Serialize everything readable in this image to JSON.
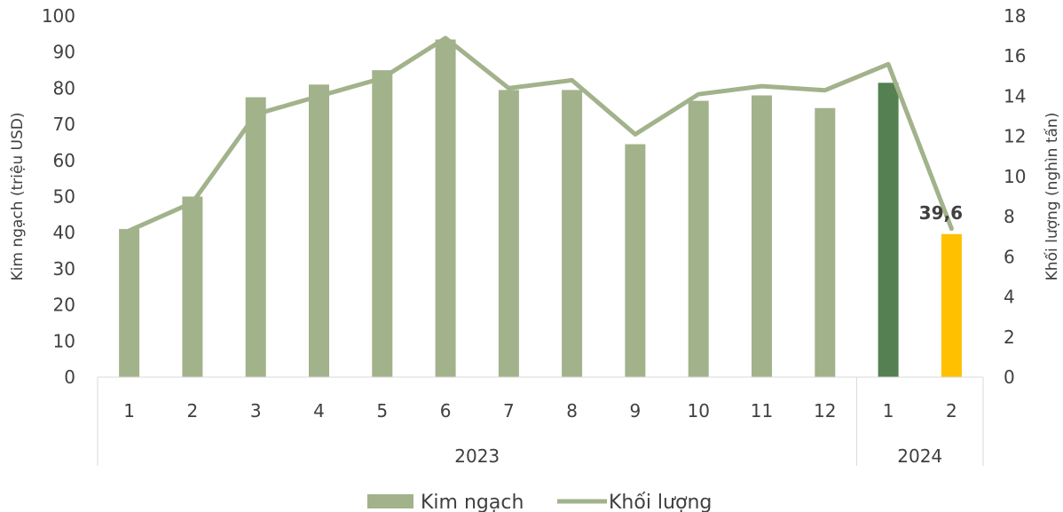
{
  "chart_data": {
    "type": "bar",
    "title": "",
    "categories": [
      "1",
      "2",
      "3",
      "4",
      "5",
      "6",
      "7",
      "8",
      "9",
      "10",
      "11",
      "12",
      "1",
      "2"
    ],
    "groups": [
      {
        "label": "2023",
        "count": 12
      },
      {
        "label": "2024",
        "count": 2
      }
    ],
    "series": [
      {
        "name": "Kim ngạch",
        "type": "bar",
        "axis": "left",
        "values": [
          41,
          50,
          77.5,
          81,
          85,
          93.5,
          79.5,
          79.5,
          64.5,
          76.5,
          78,
          74.5,
          81.5,
          39.6
        ],
        "colors": [
          "#a2b28b",
          "#a2b28b",
          "#a2b28b",
          "#a2b28b",
          "#a2b28b",
          "#a2b28b",
          "#a2b28b",
          "#a2b28b",
          "#a2b28b",
          "#a2b28b",
          "#a2b28b",
          "#a2b28b",
          "#548052",
          "#ffc000"
        ]
      },
      {
        "name": "Khối lượng",
        "type": "line",
        "axis": "right",
        "color": "#a2b28b",
        "values": [
          7.3,
          8.7,
          13.1,
          14.0,
          14.9,
          16.9,
          14.4,
          14.8,
          12.1,
          14.1,
          14.5,
          14.3,
          15.6,
          7.4
        ]
      }
    ],
    "ylabel": "Kim ngạch (triệu USD)",
    "ylabel_right": "Khối lượng (nghìn tấn)",
    "ylim": [
      0,
      100
    ],
    "yticks": [
      "0",
      "10",
      "20",
      "30",
      "40",
      "50",
      "60",
      "70",
      "80",
      "90",
      "100"
    ],
    "ylim_right": [
      0,
      18
    ],
    "yticks_right": [
      "0",
      "2",
      "4",
      "6",
      "8",
      "10",
      "12",
      "14",
      "16",
      "18"
    ],
    "data_labels": [
      {
        "index": 13,
        "text": "39,6"
      }
    ],
    "legend": {
      "position": "bottom",
      "items": [
        "Kim ngạch",
        "Khối lượng"
      ]
    },
    "grid": false
  }
}
